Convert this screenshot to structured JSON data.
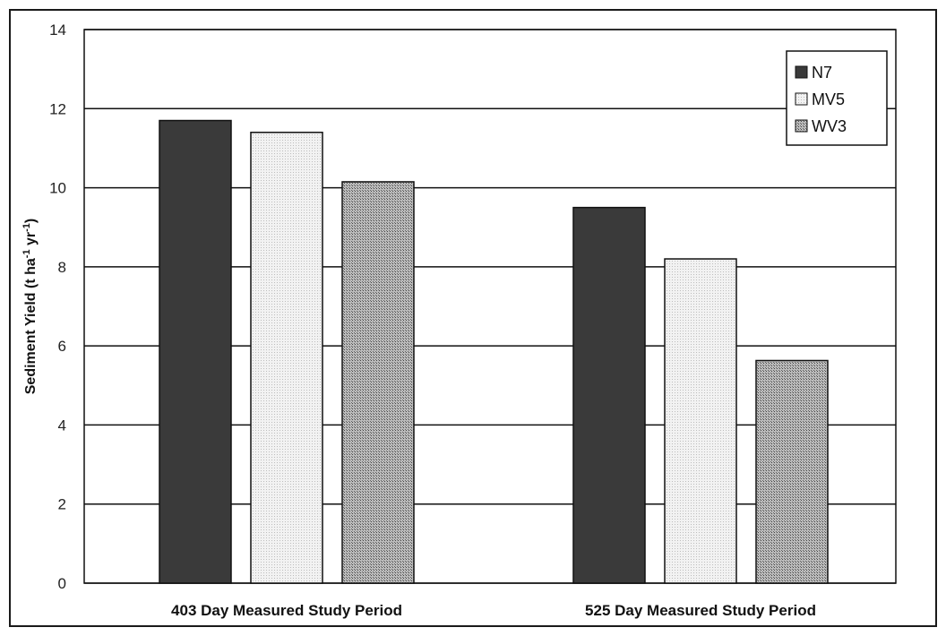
{
  "chart_data": {
    "type": "bar",
    "title": "",
    "xlabel": "",
    "ylabel": "Sediment Yield (t ha⁻¹ yr⁻¹)",
    "ylabel_parts": {
      "base": "Sediment Yield (t ha",
      "sup1": "-1",
      "mid": " yr",
      "sup2": "-1",
      "end": ")"
    },
    "ylim": [
      0,
      14
    ],
    "yticks": [
      0,
      2,
      4,
      6,
      8,
      10,
      12,
      14
    ],
    "grid": true,
    "legend_position": "top-right",
    "categories": [
      "403 Day Measured Study Period",
      "525 Day Measured Study Period"
    ],
    "series": [
      {
        "name": "N7",
        "values": [
          11.7,
          9.5
        ],
        "fill": "#3a3a3a",
        "pattern": "solid"
      },
      {
        "name": "MV5",
        "values": [
          11.4,
          8.2
        ],
        "fill": "#eeeeee",
        "pattern": "dots-light"
      },
      {
        "name": "WV3",
        "values": [
          10.15,
          5.63
        ],
        "fill": "#999999",
        "pattern": "dots-dark"
      }
    ]
  }
}
